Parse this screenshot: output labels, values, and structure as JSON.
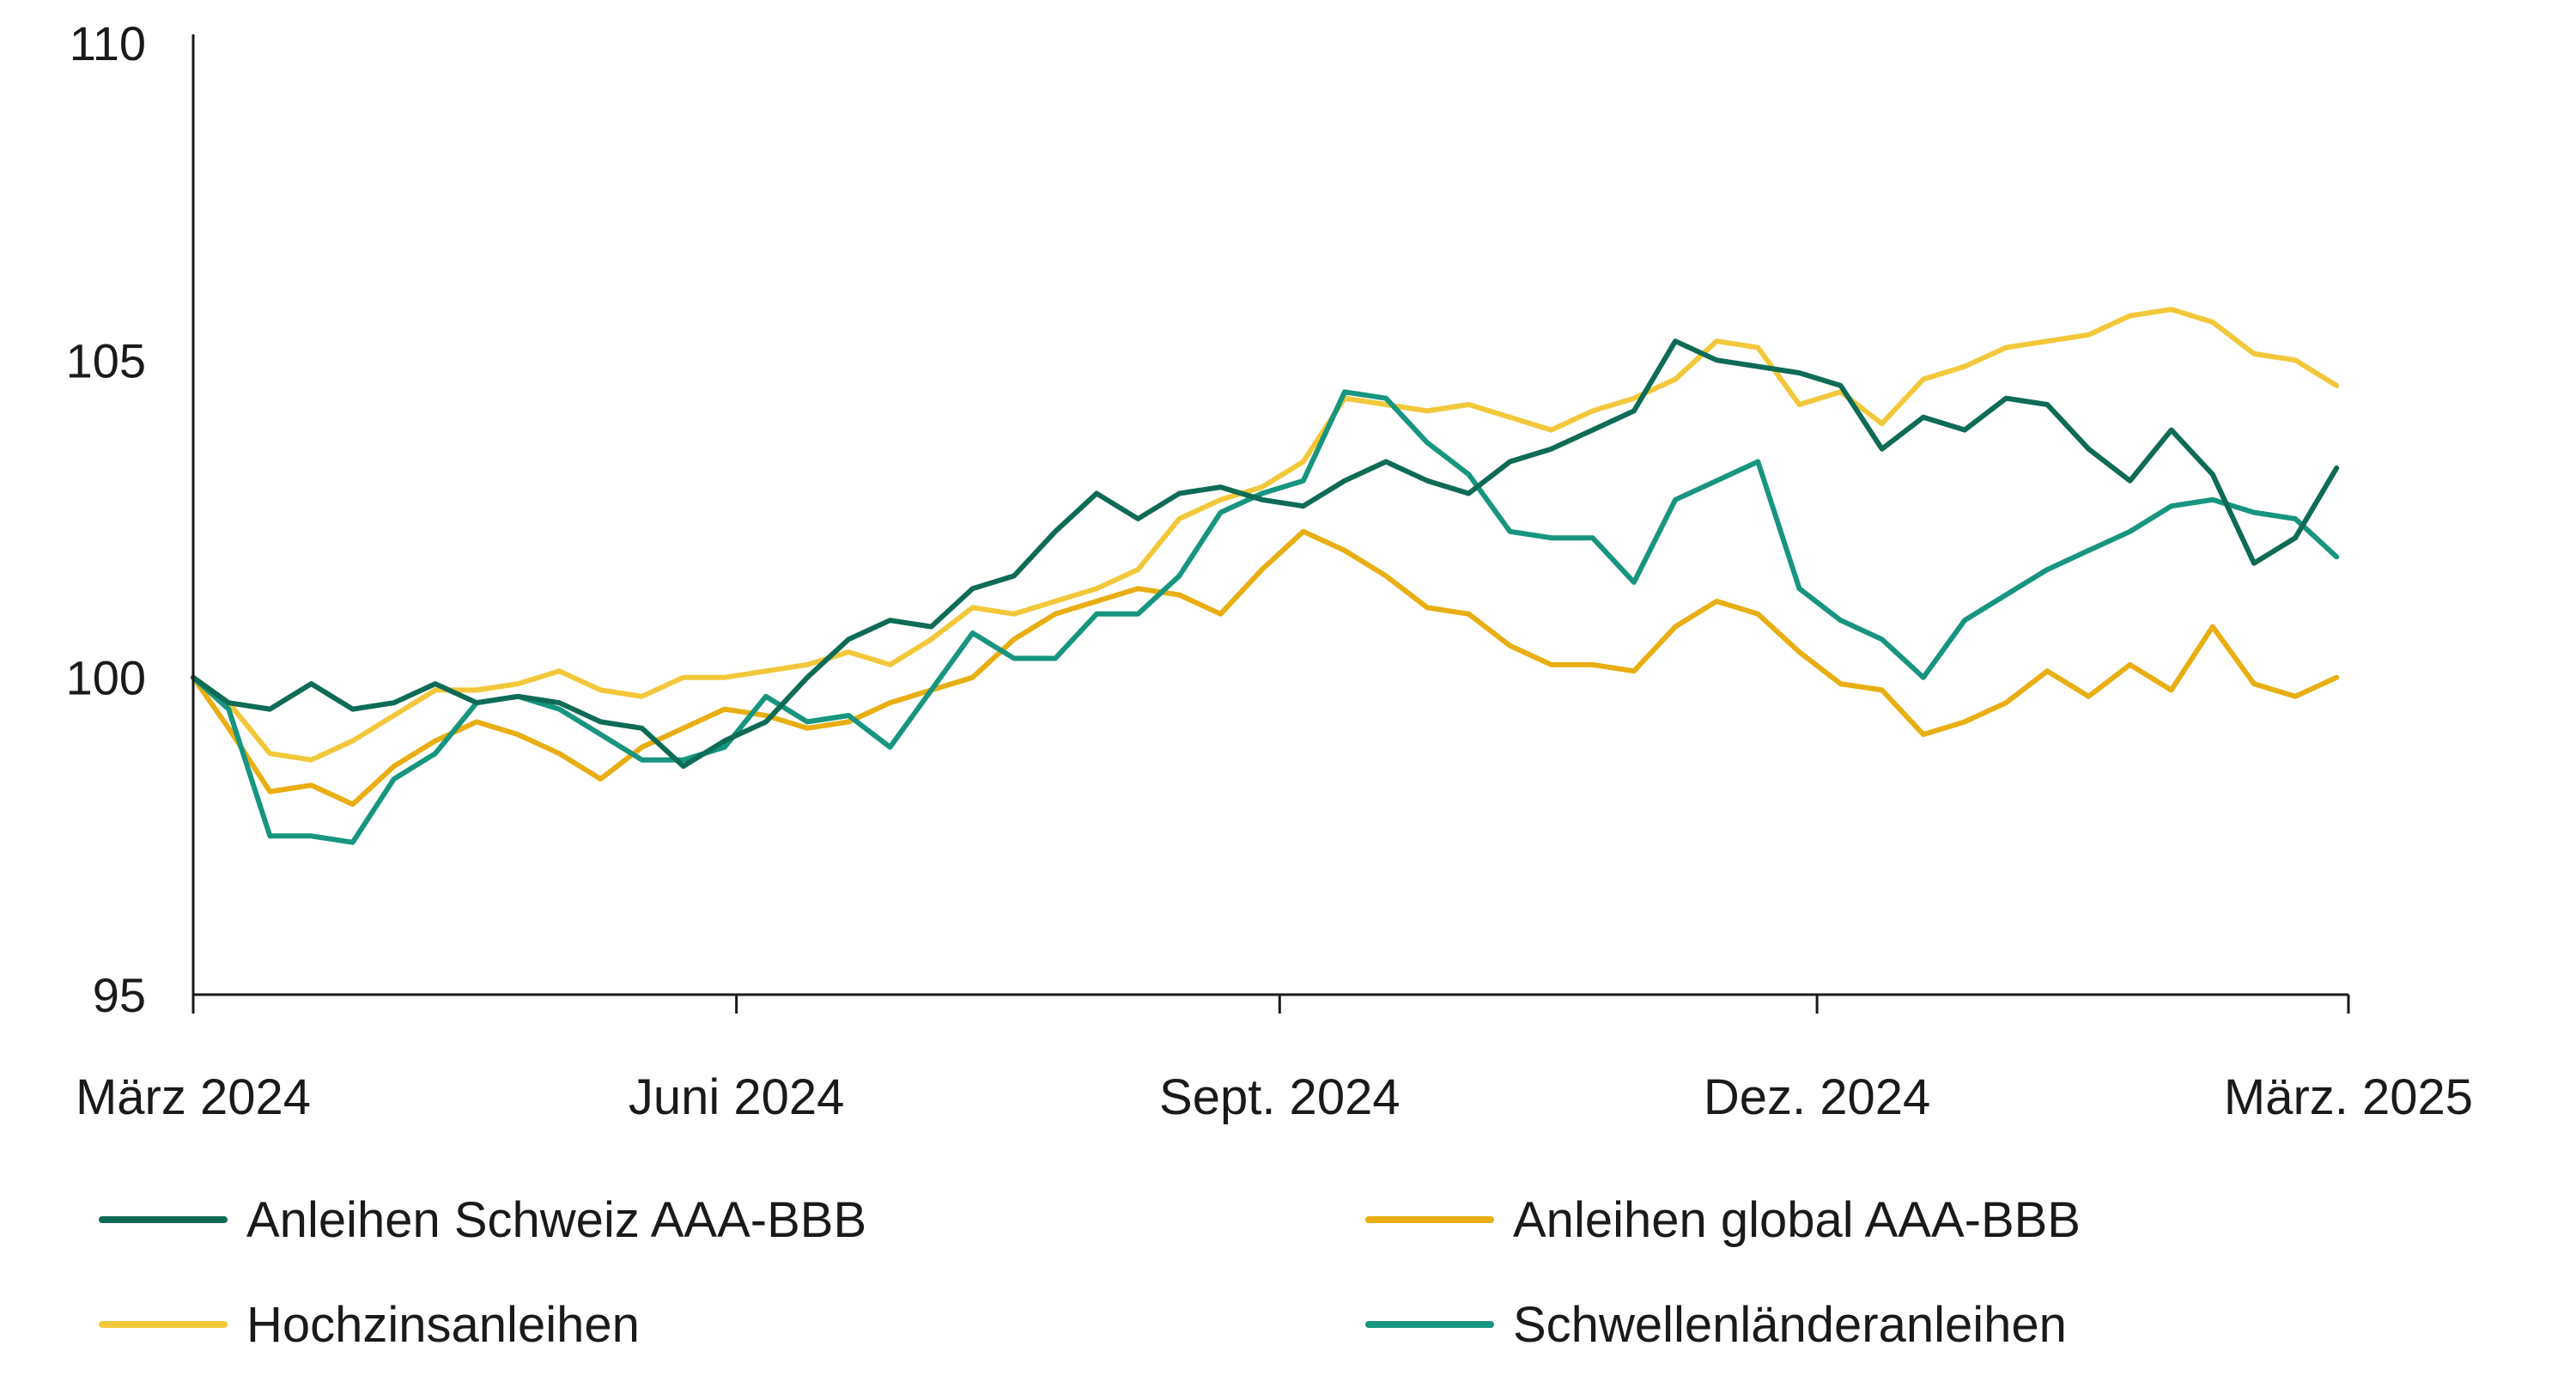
{
  "chart_data": {
    "type": "line",
    "title": "",
    "xlabel": "",
    "ylabel": "",
    "ylim": [
      95,
      110
    ],
    "yticks": [
      95,
      100,
      105,
      110
    ],
    "x_ticks": [
      "März 2024",
      "Juni 2024",
      "Sept. 2024",
      "Dez. 2024",
      "März. 2025"
    ],
    "x_tick_dates": [
      "2024-03-01",
      "2024-06-01",
      "2024-09-01",
      "2024-12-01",
      "2025-03-01"
    ],
    "grid": false,
    "legend_position": "bottom",
    "series": [
      {
        "name": "Anleihen Schweiz AAA-BBB",
        "color": "#0e6b56",
        "points": [
          [
            "2024-03-01",
            100.0
          ],
          [
            "2024-03-07",
            99.6
          ],
          [
            "2024-03-14",
            99.5
          ],
          [
            "2024-03-21",
            99.9
          ],
          [
            "2024-03-28",
            99.5
          ],
          [
            "2024-04-04",
            99.6
          ],
          [
            "2024-04-11",
            99.9
          ],
          [
            "2024-04-18",
            99.6
          ],
          [
            "2024-04-25",
            99.7
          ],
          [
            "2024-05-02",
            99.6
          ],
          [
            "2024-05-09",
            99.3
          ],
          [
            "2024-05-16",
            99.2
          ],
          [
            "2024-05-23",
            98.6
          ],
          [
            "2024-05-30",
            99.0
          ],
          [
            "2024-06-06",
            99.3
          ],
          [
            "2024-06-13",
            100.0
          ],
          [
            "2024-06-20",
            100.6
          ],
          [
            "2024-06-27",
            100.9
          ],
          [
            "2024-07-04",
            100.8
          ],
          [
            "2024-07-11",
            101.4
          ],
          [
            "2024-07-18",
            101.6
          ],
          [
            "2024-07-25",
            102.3
          ],
          [
            "2024-08-01",
            102.9
          ],
          [
            "2024-08-08",
            102.5
          ],
          [
            "2024-08-15",
            102.9
          ],
          [
            "2024-08-22",
            103.0
          ],
          [
            "2024-08-29",
            102.8
          ],
          [
            "2024-09-05",
            102.7
          ],
          [
            "2024-09-12",
            103.1
          ],
          [
            "2024-09-19",
            103.4
          ],
          [
            "2024-09-26",
            103.1
          ],
          [
            "2024-10-03",
            102.9
          ],
          [
            "2024-10-10",
            103.4
          ],
          [
            "2024-10-17",
            103.6
          ],
          [
            "2024-10-24",
            103.9
          ],
          [
            "2024-10-31",
            104.2
          ],
          [
            "2024-11-07",
            105.3
          ],
          [
            "2024-11-14",
            105.0
          ],
          [
            "2024-11-21",
            104.9
          ],
          [
            "2024-11-28",
            104.8
          ],
          [
            "2024-12-05",
            104.6
          ],
          [
            "2024-12-12",
            103.6
          ],
          [
            "2024-12-19",
            104.1
          ],
          [
            "2024-12-26",
            103.9
          ],
          [
            "2025-01-02",
            104.4
          ],
          [
            "2025-01-09",
            104.3
          ],
          [
            "2025-01-16",
            103.6
          ],
          [
            "2025-01-23",
            103.1
          ],
          [
            "2025-01-30",
            103.9
          ],
          [
            "2025-02-06",
            103.2
          ],
          [
            "2025-02-13",
            101.8
          ],
          [
            "2025-02-20",
            102.2
          ],
          [
            "2025-02-27",
            103.3
          ]
        ]
      },
      {
        "name": "Anleihen global AAA-BBB",
        "color": "#e8ae12",
        "points": [
          [
            "2024-03-01",
            100.0
          ],
          [
            "2024-03-07",
            99.2
          ],
          [
            "2024-03-14",
            98.2
          ],
          [
            "2024-03-21",
            98.3
          ],
          [
            "2024-03-28",
            98.0
          ],
          [
            "2024-04-04",
            98.6
          ],
          [
            "2024-04-11",
            99.0
          ],
          [
            "2024-04-18",
            99.3
          ],
          [
            "2024-04-25",
            99.1
          ],
          [
            "2024-05-02",
            98.8
          ],
          [
            "2024-05-09",
            98.4
          ],
          [
            "2024-05-16",
            98.9
          ],
          [
            "2024-05-23",
            99.2
          ],
          [
            "2024-05-30",
            99.5
          ],
          [
            "2024-06-06",
            99.4
          ],
          [
            "2024-06-13",
            99.2
          ],
          [
            "2024-06-20",
            99.3
          ],
          [
            "2024-06-27",
            99.6
          ],
          [
            "2024-07-04",
            99.8
          ],
          [
            "2024-07-11",
            100.0
          ],
          [
            "2024-07-18",
            100.6
          ],
          [
            "2024-07-25",
            101.0
          ],
          [
            "2024-08-01",
            101.2
          ],
          [
            "2024-08-08",
            101.4
          ],
          [
            "2024-08-15",
            101.3
          ],
          [
            "2024-08-22",
            101.0
          ],
          [
            "2024-08-29",
            101.7
          ],
          [
            "2024-09-05",
            102.3
          ],
          [
            "2024-09-12",
            102.0
          ],
          [
            "2024-09-19",
            101.6
          ],
          [
            "2024-09-26",
            101.1
          ],
          [
            "2024-10-03",
            101.0
          ],
          [
            "2024-10-10",
            100.5
          ],
          [
            "2024-10-17",
            100.2
          ],
          [
            "2024-10-24",
            100.2
          ],
          [
            "2024-10-31",
            100.1
          ],
          [
            "2024-11-07",
            100.8
          ],
          [
            "2024-11-14",
            101.2
          ],
          [
            "2024-11-21",
            101.0
          ],
          [
            "2024-11-28",
            100.4
          ],
          [
            "2024-12-05",
            99.9
          ],
          [
            "2024-12-12",
            99.8
          ],
          [
            "2024-12-19",
            99.1
          ],
          [
            "2024-12-26",
            99.3
          ],
          [
            "2025-01-02",
            99.6
          ],
          [
            "2025-01-09",
            100.1
          ],
          [
            "2025-01-16",
            99.7
          ],
          [
            "2025-01-23",
            100.2
          ],
          [
            "2025-01-30",
            99.8
          ],
          [
            "2025-02-06",
            100.8
          ],
          [
            "2025-02-13",
            99.9
          ],
          [
            "2025-02-20",
            99.7
          ],
          [
            "2025-02-27",
            100.0
          ]
        ]
      },
      {
        "name": "Hochzinsanleihen",
        "color": "#f2c83a",
        "points": [
          [
            "2024-03-01",
            100.0
          ],
          [
            "2024-03-07",
            99.6
          ],
          [
            "2024-03-14",
            98.8
          ],
          [
            "2024-03-21",
            98.7
          ],
          [
            "2024-03-28",
            99.0
          ],
          [
            "2024-04-04",
            99.4
          ],
          [
            "2024-04-11",
            99.8
          ],
          [
            "2024-04-18",
            99.8
          ],
          [
            "2024-04-25",
            99.9
          ],
          [
            "2024-05-02",
            100.1
          ],
          [
            "2024-05-09",
            99.8
          ],
          [
            "2024-05-16",
            99.7
          ],
          [
            "2024-05-23",
            100.0
          ],
          [
            "2024-05-30",
            100.0
          ],
          [
            "2024-06-06",
            100.1
          ],
          [
            "2024-06-13",
            100.2
          ],
          [
            "2024-06-20",
            100.4
          ],
          [
            "2024-06-27",
            100.2
          ],
          [
            "2024-07-04",
            100.6
          ],
          [
            "2024-07-11",
            101.1
          ],
          [
            "2024-07-18",
            101.0
          ],
          [
            "2024-07-25",
            101.2
          ],
          [
            "2024-08-01",
            101.4
          ],
          [
            "2024-08-08",
            101.7
          ],
          [
            "2024-08-15",
            102.5
          ],
          [
            "2024-08-22",
            102.8
          ],
          [
            "2024-08-29",
            103.0
          ],
          [
            "2024-09-05",
            103.4
          ],
          [
            "2024-09-12",
            104.4
          ],
          [
            "2024-09-19",
            104.3
          ],
          [
            "2024-09-26",
            104.2
          ],
          [
            "2024-10-03",
            104.3
          ],
          [
            "2024-10-10",
            104.1
          ],
          [
            "2024-10-17",
            103.9
          ],
          [
            "2024-10-24",
            104.2
          ],
          [
            "2024-10-31",
            104.4
          ],
          [
            "2024-11-07",
            104.7
          ],
          [
            "2024-11-14",
            105.3
          ],
          [
            "2024-11-21",
            105.2
          ],
          [
            "2024-11-28",
            104.3
          ],
          [
            "2024-12-05",
            104.5
          ],
          [
            "2024-12-12",
            104.0
          ],
          [
            "2024-12-19",
            104.7
          ],
          [
            "2024-12-26",
            104.9
          ],
          [
            "2025-01-02",
            105.2
          ],
          [
            "2025-01-09",
            105.3
          ],
          [
            "2025-01-16",
            105.4
          ],
          [
            "2025-01-23",
            105.7
          ],
          [
            "2025-01-30",
            105.8
          ],
          [
            "2025-02-06",
            105.6
          ],
          [
            "2025-02-13",
            105.1
          ],
          [
            "2025-02-20",
            105.0
          ],
          [
            "2025-02-27",
            104.6
          ]
        ]
      },
      {
        "name": "Schwellenländeranleihen",
        "color": "#17957f",
        "points": [
          [
            "2024-03-01",
            100.0
          ],
          [
            "2024-03-07",
            99.5
          ],
          [
            "2024-03-14",
            97.5
          ],
          [
            "2024-03-21",
            97.5
          ],
          [
            "2024-03-28",
            97.4
          ],
          [
            "2024-04-04",
            98.4
          ],
          [
            "2024-04-11",
            98.8
          ],
          [
            "2024-04-18",
            99.6
          ],
          [
            "2024-04-25",
            99.7
          ],
          [
            "2024-05-02",
            99.5
          ],
          [
            "2024-05-09",
            99.1
          ],
          [
            "2024-05-16",
            98.7
          ],
          [
            "2024-05-23",
            98.7
          ],
          [
            "2024-05-30",
            98.9
          ],
          [
            "2024-06-06",
            99.7
          ],
          [
            "2024-06-13",
            99.3
          ],
          [
            "2024-06-20",
            99.4
          ],
          [
            "2024-06-27",
            98.9
          ],
          [
            "2024-07-04",
            99.8
          ],
          [
            "2024-07-11",
            100.7
          ],
          [
            "2024-07-18",
            100.3
          ],
          [
            "2024-07-25",
            100.3
          ],
          [
            "2024-08-01",
            101.0
          ],
          [
            "2024-08-08",
            101.0
          ],
          [
            "2024-08-15",
            101.6
          ],
          [
            "2024-08-22",
            102.6
          ],
          [
            "2024-08-29",
            102.9
          ],
          [
            "2024-09-05",
            103.1
          ],
          [
            "2024-09-12",
            104.5
          ],
          [
            "2024-09-19",
            104.4
          ],
          [
            "2024-09-26",
            103.7
          ],
          [
            "2024-10-03",
            103.2
          ],
          [
            "2024-10-10",
            102.3
          ],
          [
            "2024-10-17",
            102.2
          ],
          [
            "2024-10-24",
            102.2
          ],
          [
            "2024-10-31",
            101.5
          ],
          [
            "2024-11-07",
            102.8
          ],
          [
            "2024-11-14",
            103.1
          ],
          [
            "2024-11-21",
            103.4
          ],
          [
            "2024-11-28",
            101.4
          ],
          [
            "2024-12-05",
            100.9
          ],
          [
            "2024-12-12",
            100.6
          ],
          [
            "2024-12-19",
            100.0
          ],
          [
            "2024-12-26",
            100.9
          ],
          [
            "2025-01-02",
            101.3
          ],
          [
            "2025-01-09",
            101.7
          ],
          [
            "2025-01-16",
            102.0
          ],
          [
            "2025-01-23",
            102.3
          ],
          [
            "2025-01-30",
            102.7
          ],
          [
            "2025-02-06",
            102.8
          ],
          [
            "2025-02-13",
            102.6
          ],
          [
            "2025-02-20",
            102.5
          ],
          [
            "2025-02-27",
            101.9
          ]
        ]
      }
    ]
  },
  "legend": [
    {
      "label": "Anleihen Schweiz AAA-BBB",
      "color": "#0e6b56"
    },
    {
      "label": "Anleihen global AAA-BBB",
      "color": "#e8ae12"
    },
    {
      "label": "Hochzinsanleihen",
      "color": "#f2c83a"
    },
    {
      "label": "Schwellenländeranleihen",
      "color": "#17957f"
    }
  ]
}
